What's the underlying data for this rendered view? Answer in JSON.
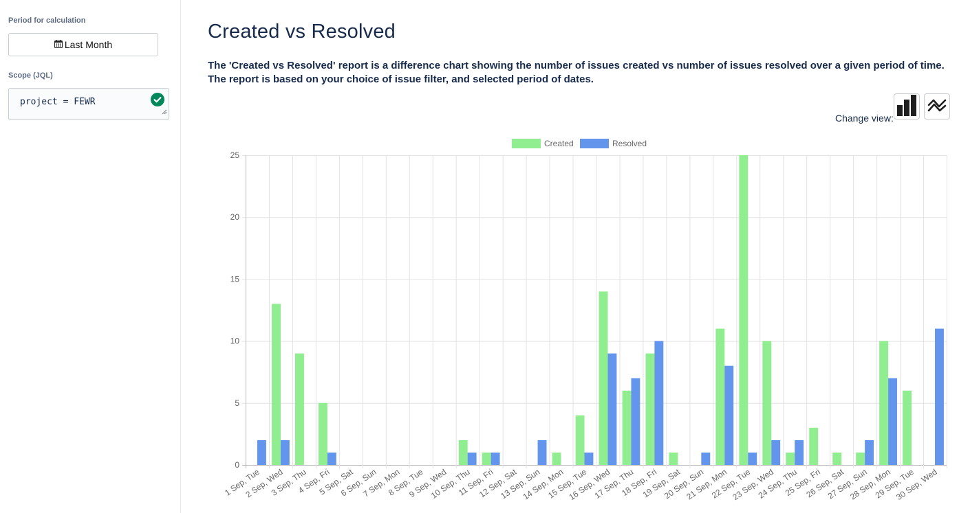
{
  "sidebar": {
    "period_label": "Period for calculation",
    "period_button": "Last Month",
    "period_icon": "calendar-icon",
    "scope_label": "Scope (JQL)",
    "scope_value": "project = FEWR",
    "scope_valid_icon": "check-circle-icon"
  },
  "main": {
    "title": "Created vs Resolved",
    "description": "The 'Created vs Resolved' report is a difference chart showing the number of issues created vs number of issues resolved over a given period of time. The report is based on your choice of issue filter, and selected period of dates.",
    "change_view_label": "Change view:",
    "view_buttons": [
      "bar-chart-icon",
      "line-chart-icon"
    ]
  },
  "colors": {
    "created": "#90ee90",
    "resolved": "#6495ed",
    "valid": "#00875a"
  },
  "chart_data": {
    "type": "bar",
    "title": "",
    "xlabel": "",
    "ylabel": "",
    "ylim": [
      0,
      25
    ],
    "yticks": [
      0,
      5,
      10,
      15,
      20,
      25
    ],
    "grid": true,
    "legend": "top-center",
    "categories": [
      "1 Sep, Tue",
      "2 Sep, Wed",
      "3 Sep, Thu",
      "4 Sep, Fri",
      "5 Sep, Sat",
      "6 Sep, Sun",
      "7 Sep, Mon",
      "8 Sep, Tue",
      "9 Sep, Wed",
      "10 Sep, Thu",
      "11 Sep, Fri",
      "12 Sep, Sat",
      "13 Sep, Sun",
      "14 Sep, Mon",
      "15 Sep, Tue",
      "16 Sep, Wed",
      "17 Sep, Thu",
      "18 Sep, Fri",
      "19 Sep, Sat",
      "20 Sep, Sun",
      "21 Sep, Mon",
      "22 Sep, Tue",
      "23 Sep, Wed",
      "24 Sep, Thu",
      "25 Sep, Fri",
      "26 Sep, Sat",
      "27 Sep, Sun",
      "28 Sep, Mon",
      "29 Sep, Tue",
      "30 Sep, Wed"
    ],
    "series": [
      {
        "name": "Created",
        "values": [
          0,
          13,
          9,
          5,
          0,
          0,
          0,
          0,
          0,
          2,
          1,
          0,
          0,
          1,
          4,
          14,
          6,
          9,
          1,
          0,
          11,
          25,
          10,
          1,
          3,
          1,
          1,
          10,
          6,
          0
        ]
      },
      {
        "name": "Resolved",
        "values": [
          2,
          2,
          0,
          1,
          0,
          0,
          0,
          0,
          0,
          1,
          1,
          0,
          2,
          0,
          1,
          9,
          7,
          10,
          0,
          1,
          8,
          1,
          2,
          2,
          0,
          0,
          2,
          7,
          0,
          11
        ]
      }
    ]
  }
}
